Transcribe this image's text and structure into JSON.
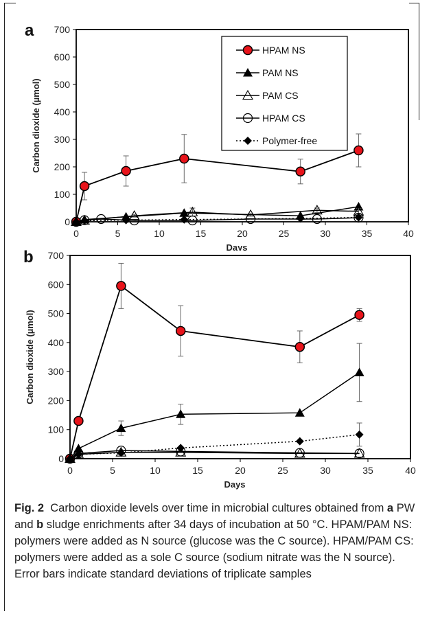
{
  "caption": {
    "label": "Fig. 2",
    "seg1": "Carbon dioxide levels over time in microbial cultures obtained from ",
    "seg2": "a",
    "seg3": " PW and ",
    "seg4": "b",
    "seg5": " sludge enrichments after 34 days of incubation at 50 °C. HPAM/PAM NS: polymers were added as N source (glucose was the C source). HPAM/PAM CS: polymers were added as a sole C source (sodium nitrate was the N source). Error bars indicate standard deviations of triplicate samples"
  },
  "chart_data": [
    {
      "panel": "a",
      "type": "line",
      "xlabel": "Days",
      "ylabel": "Carbon dioxide (µmol)",
      "xlim": [
        0,
        40
      ],
      "ylim": [
        0,
        700
      ],
      "xticks": [
        0,
        5,
        10,
        15,
        20,
        25,
        30,
        35,
        40
      ],
      "yticks": [
        0,
        100,
        200,
        300,
        400,
        500,
        600,
        700
      ],
      "grid": false,
      "legend_position": "top-right",
      "series": [
        {
          "name": "HPAM NS",
          "marker": "circle-red",
          "x": [
            0,
            1,
            6,
            13,
            27,
            34
          ],
          "y": [
            0,
            130,
            185,
            230,
            183,
            260
          ],
          "err": [
            0,
            50,
            55,
            88,
            45,
            60
          ]
        },
        {
          "name": "PAM NS",
          "marker": "triangle-filled",
          "x": [
            0,
            1,
            6,
            13,
            27,
            34
          ],
          "y": [
            0,
            8,
            18,
            32,
            22,
            55
          ],
          "err": [
            0,
            0,
            0,
            0,
            0,
            0
          ]
        },
        {
          "name": "PAM CS",
          "marker": "triangle-open",
          "x": [
            0,
            1,
            7,
            14,
            21,
            29,
            34
          ],
          "y": [
            0,
            5,
            22,
            35,
            25,
            42,
            38
          ],
          "err": [
            0,
            0,
            5,
            15,
            5,
            8,
            10
          ]
        },
        {
          "name": "HPAM CS",
          "marker": "circle-open",
          "x": [
            0,
            1,
            3,
            7,
            14,
            21,
            29,
            34
          ],
          "y": [
            0,
            6,
            10,
            5,
            5,
            10,
            10,
            15
          ],
          "err": [
            0,
            0,
            0,
            0,
            0,
            0,
            0,
            0
          ]
        },
        {
          "name": "Polymer-free",
          "marker": "diamond-filled",
          "dotted": true,
          "x": [
            0,
            1,
            6,
            13,
            27,
            34
          ],
          "y": [
            0,
            4,
            6,
            8,
            12,
            16
          ],
          "err": [
            0,
            0,
            0,
            0,
            0,
            0
          ]
        }
      ]
    },
    {
      "panel": "b",
      "type": "line",
      "xlabel": "Days",
      "ylabel": "Carbon dioxide (µmol)",
      "xlim": [
        0,
        40
      ],
      "ylim": [
        0,
        700
      ],
      "xticks": [
        0,
        5,
        10,
        15,
        20,
        25,
        30,
        35,
        40
      ],
      "yticks": [
        0,
        100,
        200,
        300,
        400,
        500,
        600,
        700
      ],
      "grid": false,
      "series": [
        {
          "name": "HPAM NS",
          "marker": "circle-red",
          "x": [
            0,
            1,
            6,
            13,
            27,
            34
          ],
          "y": [
            0,
            130,
            595,
            440,
            385,
            495
          ],
          "err": [
            0,
            0,
            78,
            87,
            55,
            22
          ]
        },
        {
          "name": "PAM NS",
          "marker": "triangle-filled",
          "x": [
            0,
            1,
            6,
            13,
            27,
            34
          ],
          "y": [
            0,
            35,
            105,
            153,
            158,
            297
          ],
          "err": [
            0,
            0,
            25,
            35,
            0,
            100
          ]
        },
        {
          "name": "PAM CS",
          "marker": "triangle-open",
          "x": [
            0,
            1,
            6,
            13,
            27,
            34
          ],
          "y": [
            0,
            15,
            22,
            22,
            18,
            18
          ],
          "err": [
            0,
            0,
            0,
            0,
            0,
            0
          ]
        },
        {
          "name": "HPAM CS",
          "marker": "circle-open",
          "x": [
            0,
            1,
            6,
            13,
            27,
            34
          ],
          "y": [
            0,
            18,
            28,
            25,
            20,
            18
          ],
          "err": [
            0,
            0,
            0,
            0,
            0,
            0
          ]
        },
        {
          "name": "Polymer-free",
          "marker": "diamond-filled",
          "dotted": true,
          "x": [
            0,
            1,
            6,
            13,
            27,
            34
          ],
          "y": [
            0,
            15,
            20,
            37,
            60,
            83
          ],
          "err": [
            0,
            0,
            0,
            0,
            0,
            40
          ]
        }
      ]
    }
  ]
}
